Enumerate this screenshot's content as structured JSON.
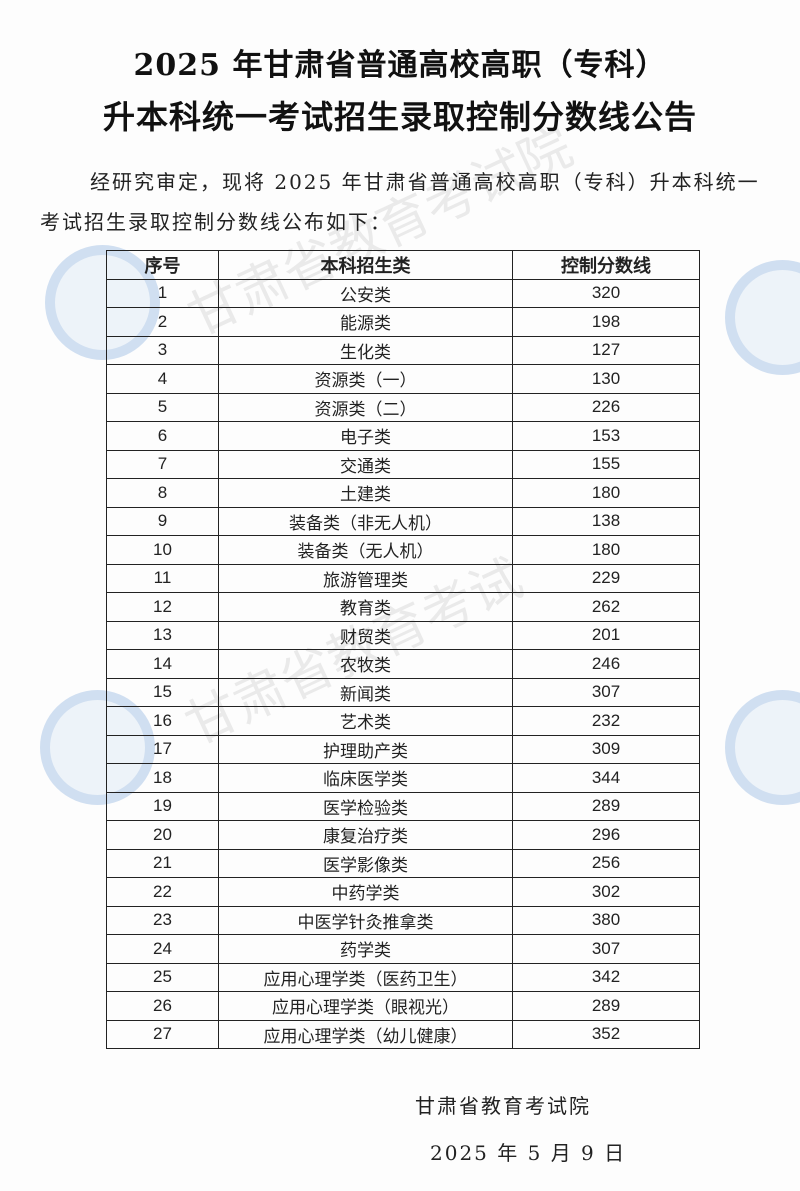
{
  "header": {
    "title_line1": "2025 年甘肃省普通高校高职（专科）",
    "title_line2": "升本科统一考试招生录取控制分数线公告"
  },
  "intro": "经研究审定，现将 2025 年甘肃省普通高校高职（专科）升本科统一考试招生录取控制分数线公布如下：",
  "table": {
    "headers": [
      "序号",
      "本科招生类",
      "控制分数线"
    ],
    "rows": [
      [
        "1",
        "公安类",
        "320"
      ],
      [
        "2",
        "能源类",
        "198"
      ],
      [
        "3",
        "生化类",
        "127"
      ],
      [
        "4",
        "资源类（一）",
        "130"
      ],
      [
        "5",
        "资源类（二）",
        "226"
      ],
      [
        "6",
        "电子类",
        "153"
      ],
      [
        "7",
        "交通类",
        "155"
      ],
      [
        "8",
        "土建类",
        "180"
      ],
      [
        "9",
        "装备类（非无人机）",
        "138"
      ],
      [
        "10",
        "装备类（无人机）",
        "180"
      ],
      [
        "11",
        "旅游管理类",
        "229"
      ],
      [
        "12",
        "教育类",
        "262"
      ],
      [
        "13",
        "财贸类",
        "201"
      ],
      [
        "14",
        "农牧类",
        "246"
      ],
      [
        "15",
        "新闻类",
        "307"
      ],
      [
        "16",
        "艺术类",
        "232"
      ],
      [
        "17",
        "护理助产类",
        "309"
      ],
      [
        "18",
        "临床医学类",
        "344"
      ],
      [
        "19",
        "医学检验类",
        "289"
      ],
      [
        "20",
        "康复治疗类",
        "296"
      ],
      [
        "21",
        "医学影像类",
        "256"
      ],
      [
        "22",
        "中药学类",
        "302"
      ],
      [
        "23",
        "中医学针灸推拿类",
        "380"
      ],
      [
        "24",
        "药学类",
        "307"
      ],
      [
        "25",
        "应用心理学类（医药卫生）",
        "342"
      ],
      [
        "26",
        "应用心理学类（眼视光）",
        "289"
      ],
      [
        "27",
        "应用心理学类（幼儿健康）",
        "352"
      ]
    ]
  },
  "footer": {
    "issuer": "甘肃省教育考试院",
    "date": "2025 年 5 月 9 日"
  },
  "watermark": {
    "text": "甘肃省教育考试院",
    "color": "#78a0d7"
  }
}
